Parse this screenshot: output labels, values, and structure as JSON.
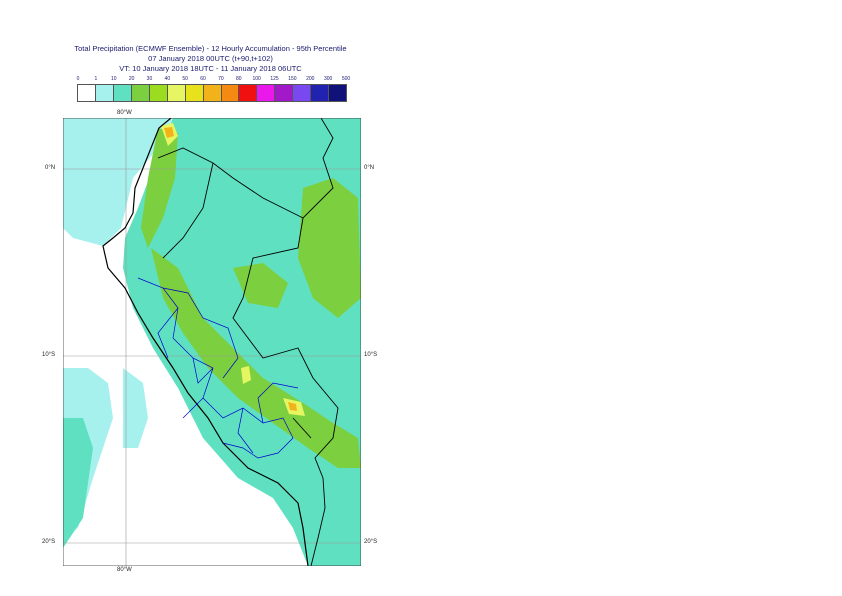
{
  "header": {
    "line1": "Total Precipitation (ECMWF Ensemble) - 12 Hourly Accumulation - 95th Percentile",
    "line2": "07 January 2018 00UTC (t+90,t+102)",
    "line3": "VT: 10 January 2018 18UTC - 11 January 2018 06UTC"
  },
  "legend": {
    "thresholds": [
      "0",
      "1",
      "10",
      "20",
      "30",
      "40",
      "50",
      "60",
      "70",
      "80",
      "100",
      "125",
      "150",
      "200",
      "300",
      "500"
    ],
    "colors": [
      "#ffffff",
      "#a6f0ee",
      "#5fe0c0",
      "#7ccf3e",
      "#9cdc20",
      "#e6f562",
      "#e7e21c",
      "#f2b21a",
      "#f58a12",
      "#f01010",
      "#ea18ea",
      "#a119c8",
      "#7a48f0",
      "#2222b0",
      "#11117a"
    ]
  },
  "axes": {
    "lon_top": "80°W",
    "lon_bottom": "80°W",
    "lat_0_left": "0°N",
    "lat_0_right": "0°N",
    "lat_10_left": "10°S",
    "lat_10_right": "10°S",
    "lat_20_left": "20°S",
    "lat_20_right": "20°S"
  }
}
